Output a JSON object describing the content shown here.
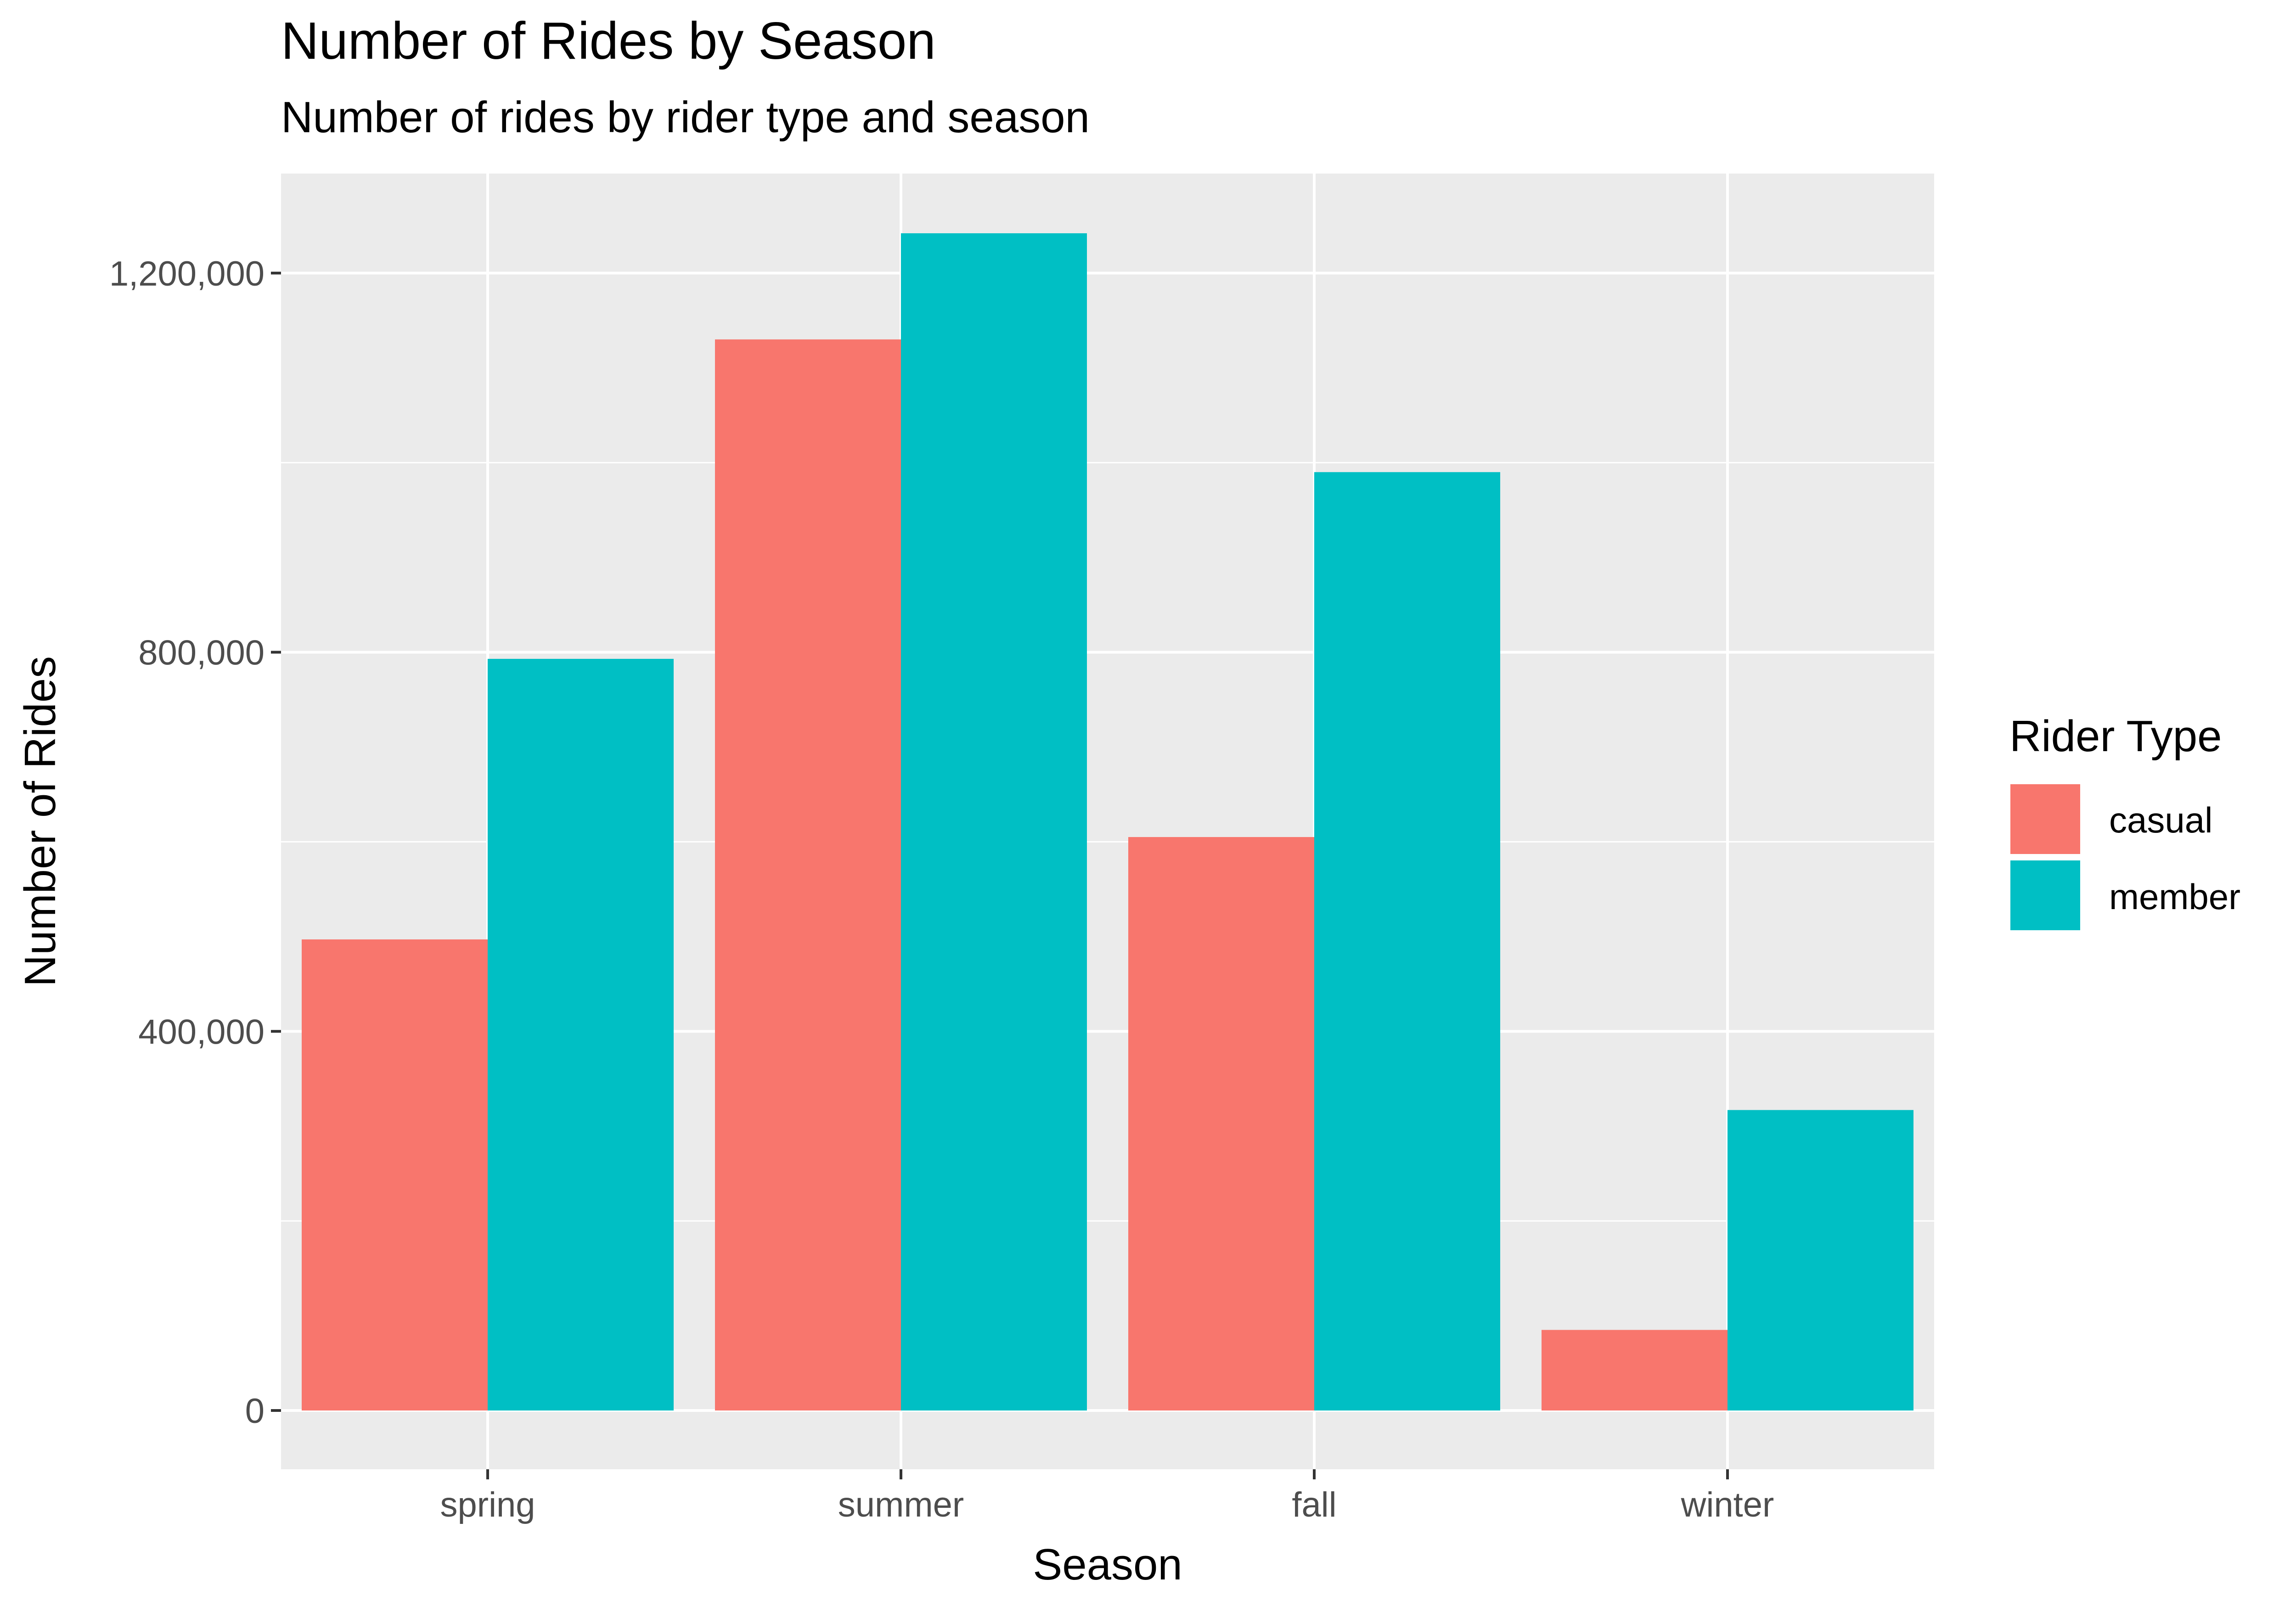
{
  "chart_data": {
    "type": "bar",
    "title": "Number of Rides by Season",
    "subtitle": "Number of rides by rider type and season",
    "xlabel": "Season",
    "ylabel": "Number of Rides",
    "categories": [
      "spring",
      "summer",
      "fall",
      "winter"
    ],
    "series": [
      {
        "name": "casual",
        "values": [
          497000,
          1130000,
          605000,
          85000
        ],
        "color": "#F8766D"
      },
      {
        "name": "member",
        "values": [
          793000,
          1242000,
          990000,
          317000
        ],
        "color": "#00BFC4"
      }
    ],
    "ylim": [
      -62000,
      1305000
    ],
    "yticks": [
      0,
      400000,
      800000,
      1200000
    ],
    "ytick_labels": [
      "0",
      "400,000",
      "800,000",
      "1,200,000"
    ],
    "legend": {
      "title": "Rider Type",
      "position": "right"
    },
    "grid": true,
    "panel_background": "#EBEBEB"
  }
}
